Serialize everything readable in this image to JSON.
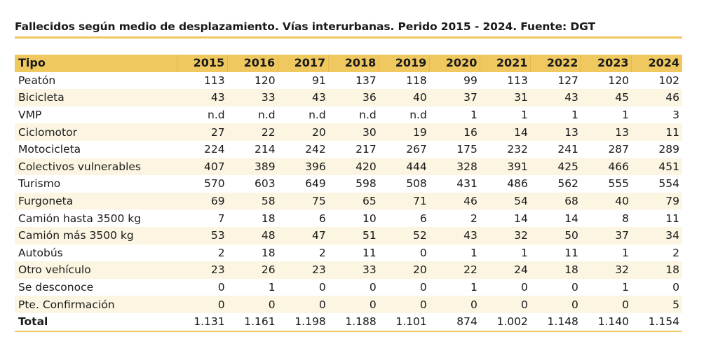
{
  "title": "Fallecidos según medio de desplazamiento. Vías interurbanas. Perido 2015 - 2024. Fuente: DGT",
  "table": {
    "header": {
      "label": "Tipo",
      "years": [
        "2015",
        "2016",
        "2017",
        "2018",
        "2019",
        "2020",
        "2021",
        "2022",
        "2023",
        "2024"
      ]
    },
    "rows": [
      {
        "label": "Peatón",
        "values": [
          "113",
          "120",
          "91",
          "137",
          "118",
          "99",
          "113",
          "127",
          "120",
          "102"
        ]
      },
      {
        "label": "Bicicleta",
        "values": [
          "43",
          "33",
          "43",
          "36",
          "40",
          "37",
          "31",
          "43",
          "45",
          "46"
        ]
      },
      {
        "label": "VMP",
        "values": [
          "n.d",
          "n.d",
          "n.d",
          "n.d",
          "n.d",
          "1",
          "1",
          "1",
          "1",
          "3"
        ]
      },
      {
        "label": "Ciclomotor",
        "values": [
          "27",
          "22",
          "20",
          "30",
          "19",
          "16",
          "14",
          "13",
          "13",
          "11"
        ]
      },
      {
        "label": "Motocicleta",
        "values": [
          "224",
          "214",
          "242",
          "217",
          "267",
          "175",
          "232",
          "241",
          "287",
          "289"
        ]
      },
      {
        "label": "Colectivos vulnerables",
        "values": [
          "407",
          "389",
          "396",
          "420",
          "444",
          "328",
          "391",
          "425",
          "466",
          "451"
        ]
      },
      {
        "label": "Turismo",
        "values": [
          "570",
          "603",
          "649",
          "598",
          "508",
          "431",
          "486",
          "562",
          "555",
          "554"
        ]
      },
      {
        "label": "Furgoneta",
        "values": [
          "69",
          "58",
          "75",
          "65",
          "71",
          "46",
          "54",
          "68",
          "40",
          "79"
        ]
      },
      {
        "label": "Camión hasta 3500 kg",
        "values": [
          "7",
          "18",
          "6",
          "10",
          "6",
          "2",
          "14",
          "14",
          "8",
          "11"
        ]
      },
      {
        "label": "Camión más 3500 kg",
        "values": [
          "53",
          "48",
          "47",
          "51",
          "52",
          "43",
          "32",
          "50",
          "37",
          "34"
        ]
      },
      {
        "label": "Autobús",
        "values": [
          "2",
          "18",
          "2",
          "11",
          "0",
          "1",
          "1",
          "11",
          "1",
          "2"
        ]
      },
      {
        "label": "Otro vehículo",
        "values": [
          "23",
          "26",
          "23",
          "33",
          "20",
          "22",
          "24",
          "18",
          "32",
          "18"
        ]
      },
      {
        "label": "Se desconoce",
        "values": [
          "0",
          "1",
          "0",
          "0",
          "0",
          "1",
          "0",
          "0",
          "1",
          "0"
        ]
      },
      {
        "label": "Pte. Confirmación",
        "values": [
          "0",
          "0",
          "0",
          "0",
          "0",
          "0",
          "0",
          "0",
          "0",
          "5"
        ]
      }
    ],
    "total": {
      "label": "Total",
      "values": [
        "1.131",
        "1.161",
        "1.198",
        "1.188",
        "1.101",
        "874",
        "1.002",
        "1.148",
        "1.140",
        "1.154"
      ]
    }
  },
  "colors": {
    "header_bg": "#efc85f",
    "stripe_bg": "#fbf5e2",
    "accent_line": "#efc75e"
  }
}
